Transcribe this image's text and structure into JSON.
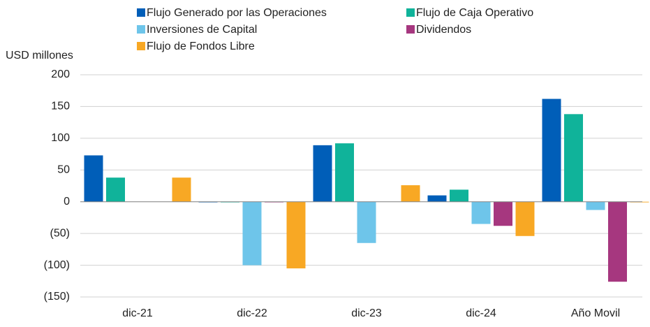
{
  "chart_data": {
    "type": "bar",
    "y_label": "USD millones",
    "categories": [
      "dic-21",
      "dic-22",
      "dic-23",
      "dic-24",
      "Año Movil"
    ],
    "series": [
      {
        "name": "Flujo Generado por las Operaciones",
        "color": "#005eb8",
        "values": [
          73,
          -1,
          89,
          10,
          162
        ]
      },
      {
        "name": "Flujo de Caja Operativo",
        "color": "#10b39a",
        "values": [
          38,
          -1,
          92,
          19,
          138
        ]
      },
      {
        "name": "Inversiones de Capital",
        "color": "#6ec5ea",
        "values": [
          0,
          -100,
          -65,
          -35,
          -13
        ]
      },
      {
        "name": "Dividendos",
        "color": "#a6377f",
        "values": [
          0,
          -1,
          0,
          -38,
          -126
        ]
      },
      {
        "name": "Flujo de Fondos Libre",
        "color": "#f8a824",
        "values": [
          38,
          -105,
          26,
          -54,
          -1
        ]
      }
    ],
    "ylim": [
      -150,
      200
    ],
    "yticks": [
      {
        "value": -150,
        "label": "(150)"
      },
      {
        "value": -100,
        "label": "(100)"
      },
      {
        "value": -50,
        "label": "(50)"
      },
      0,
      50,
      100,
      150,
      200
    ],
    "grid": true
  }
}
